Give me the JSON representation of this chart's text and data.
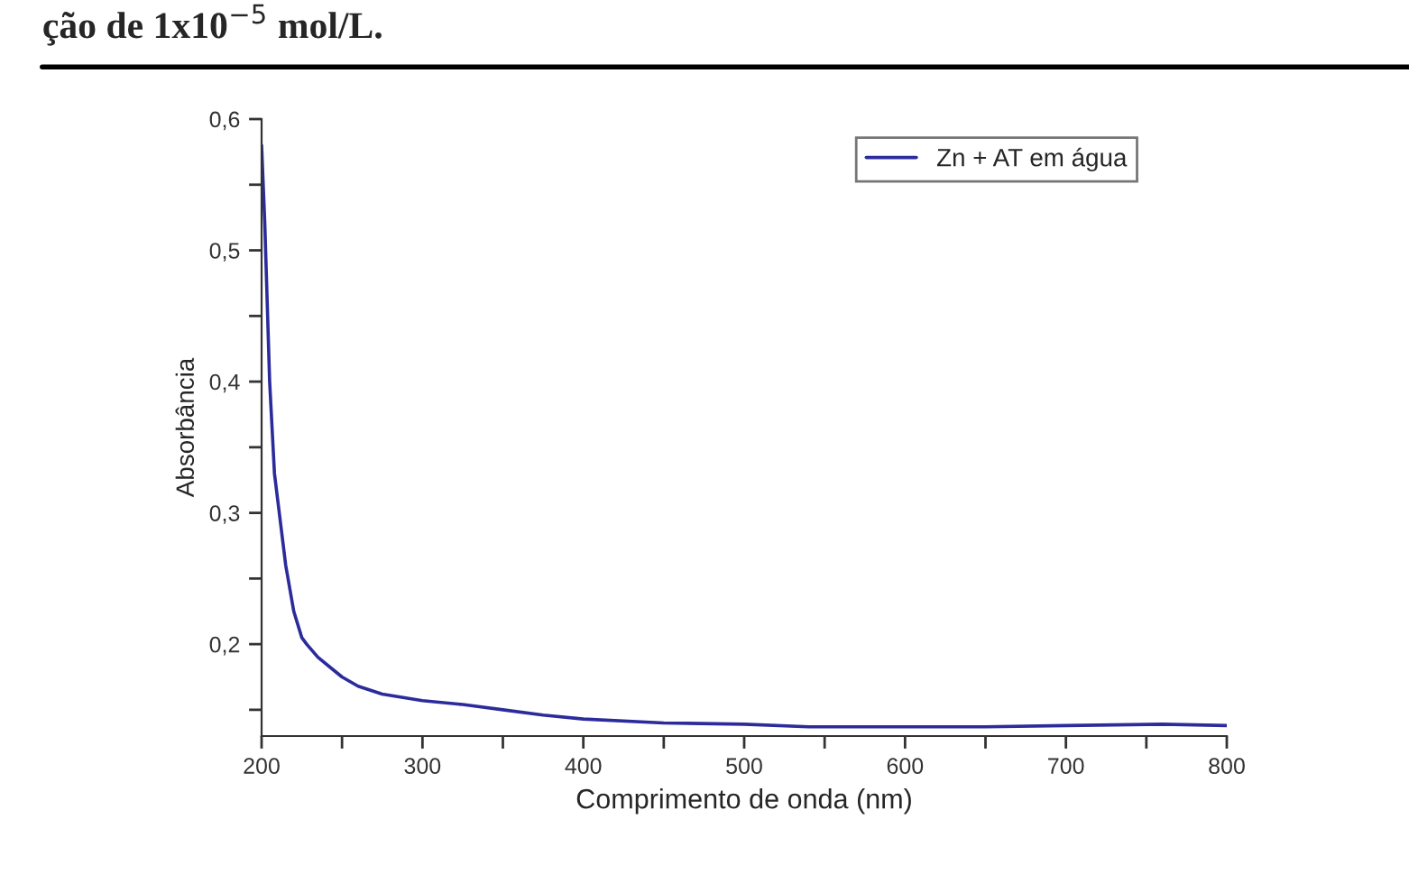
{
  "chart_data": {
    "type": "line",
    "xlabel": "Comprimento de onda (nm)",
    "ylabel": "Absorbância",
    "annotations": [
      "ção de 1x10$^{−5}$ mol/L."
    ],
    "x": [
      200,
      202,
      205,
      208,
      211,
      215,
      220,
      225,
      228,
      235,
      245,
      250,
      260,
      275,
      300,
      325,
      350,
      375,
      400,
      450,
      500,
      540,
      600,
      650,
      700,
      760,
      800
    ],
    "series": [
      {
        "name": "Zn + AT em água",
        "color": "#2b2b9c",
        "values": [
          0.58,
          0.52,
          0.4,
          0.33,
          0.3,
          0.26,
          0.225,
          0.205,
          0.2,
          0.19,
          0.18,
          0.175,
          0.168,
          0.162,
          0.157,
          0.154,
          0.15,
          0.146,
          0.143,
          0.14,
          0.139,
          0.137,
          0.137,
          0.137,
          0.138,
          0.139,
          0.138
        ]
      }
    ],
    "xlim": [
      200,
      800
    ],
    "ylim": [
      0.13,
      0.6
    ],
    "xticks": [
      200,
      {
        "value": 250,
        "label": null
      },
      300,
      {
        "value": 350,
        "label": null
      },
      400,
      {
        "value": 450,
        "label": null
      },
      500,
      {
        "value": 550,
        "label": null
      },
      600,
      {
        "value": 650,
        "label": null
      },
      700,
      {
        "value": 750,
        "label": null
      },
      800
    ],
    "yticks": [
      {
        "value": 0.15,
        "label": null
      },
      {
        "value": 0.2,
        "label": "0,2"
      },
      {
        "value": 0.25,
        "label": null
      },
      {
        "value": 0.3,
        "label": "0,3"
      },
      {
        "value": 0.35,
        "label": null
      },
      {
        "value": 0.4,
        "label": "0,4"
      },
      {
        "value": 0.45,
        "label": null
      },
      {
        "value": 0.5,
        "label": "0,5"
      },
      {
        "value": 0.55,
        "label": null
      },
      {
        "value": 0.6,
        "label": "0,6"
      }
    ],
    "legend": "top right",
    "grid": false,
    "line_style": "solid"
  }
}
